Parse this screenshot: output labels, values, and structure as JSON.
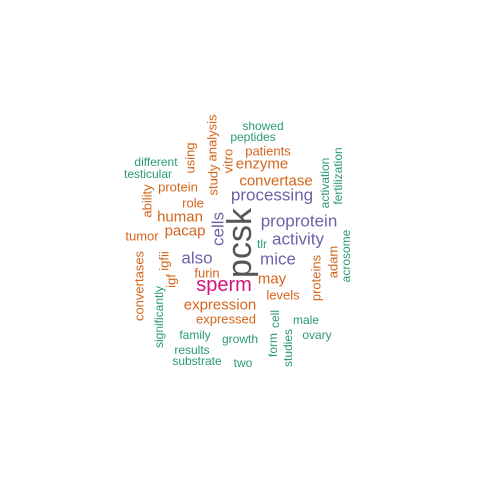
{
  "colors": {
    "dark": "#555555",
    "magenta": "#d4147a",
    "purple": "#6b63a8",
    "orange": "#d4651b",
    "green": "#2a9a72"
  },
  "words": [
    {
      "id": "pcsk",
      "text": "pcsk",
      "weight": 10,
      "color": "dark",
      "vertical": true
    },
    {
      "id": "sperm",
      "text": "sperm",
      "weight": 7,
      "color": "magenta",
      "vertical": false
    },
    {
      "id": "processing",
      "text": "processing",
      "weight": 6,
      "color": "purple",
      "vertical": false
    },
    {
      "id": "proprotein",
      "text": "proprotein",
      "weight": 6,
      "color": "purple",
      "vertical": false
    },
    {
      "id": "activity",
      "text": "activity",
      "weight": 6,
      "color": "purple",
      "vertical": false
    },
    {
      "id": "mice",
      "text": "mice",
      "weight": 6,
      "color": "purple",
      "vertical": false
    },
    {
      "id": "cells",
      "text": "cells",
      "weight": 6,
      "color": "purple",
      "vertical": true
    },
    {
      "id": "also",
      "text": "also",
      "weight": 6,
      "color": "purple",
      "vertical": false
    },
    {
      "id": "convertase",
      "text": "convertase",
      "weight": 5,
      "color": "orange",
      "vertical": false
    },
    {
      "id": "enzyme",
      "text": "enzyme",
      "weight": 5,
      "color": "orange",
      "vertical": false
    },
    {
      "id": "expression",
      "text": "expression",
      "weight": 5,
      "color": "orange",
      "vertical": false
    },
    {
      "id": "human",
      "text": "human",
      "weight": 5,
      "color": "orange",
      "vertical": false
    },
    {
      "id": "pacap",
      "text": "pacap",
      "weight": 5,
      "color": "orange",
      "vertical": false
    },
    {
      "id": "may",
      "text": "may",
      "weight": 5,
      "color": "orange",
      "vertical": false
    },
    {
      "id": "levels",
      "text": "levels",
      "weight": 4,
      "color": "orange",
      "vertical": false
    },
    {
      "id": "furin",
      "text": "furin",
      "weight": 4,
      "color": "orange",
      "vertical": false
    },
    {
      "id": "expressed",
      "text": "expressed",
      "weight": 4,
      "color": "orange",
      "vertical": false
    },
    {
      "id": "protein",
      "text": "protein",
      "weight": 4,
      "color": "orange",
      "vertical": false
    },
    {
      "id": "role",
      "text": "role",
      "weight": 4,
      "color": "orange",
      "vertical": false
    },
    {
      "id": "tumor",
      "text": "tumor",
      "weight": 4,
      "color": "orange",
      "vertical": false
    },
    {
      "id": "patients",
      "text": "patients",
      "weight": 4,
      "color": "orange",
      "vertical": false
    },
    {
      "id": "study",
      "text": "study",
      "weight": 4,
      "color": "orange",
      "vertical": true
    },
    {
      "id": "analysis",
      "text": "analysis",
      "weight": 4,
      "color": "orange",
      "vertical": true
    },
    {
      "id": "vitro",
      "text": "vitro",
      "weight": 4,
      "color": "orange",
      "vertical": true
    },
    {
      "id": "using",
      "text": "using",
      "weight": 4,
      "color": "orange",
      "vertical": true
    },
    {
      "id": "ability",
      "text": "ability",
      "weight": 4,
      "color": "orange",
      "vertical": true
    },
    {
      "id": "convertases",
      "text": "convertases",
      "weight": 4,
      "color": "orange",
      "vertical": true
    },
    {
      "id": "igf",
      "text": "igf",
      "weight": 4,
      "color": "orange",
      "vertical": true
    },
    {
      "id": "igfii",
      "text": "igfii",
      "weight": 4,
      "color": "orange",
      "vertical": true
    },
    {
      "id": "adam",
      "text": "adam",
      "weight": 4,
      "color": "orange",
      "vertical": true
    },
    {
      "id": "proteins",
      "text": "proteins",
      "weight": 4,
      "color": "orange",
      "vertical": true
    },
    {
      "id": "tlr",
      "text": "tlr",
      "weight": 3,
      "color": "green",
      "vertical": false
    },
    {
      "id": "showed",
      "text": "showed",
      "weight": 3,
      "color": "green",
      "vertical": false
    },
    {
      "id": "peptides",
      "text": "peptides",
      "weight": 3,
      "color": "green",
      "vertical": false
    },
    {
      "id": "different",
      "text": "different",
      "weight": 3,
      "color": "green",
      "vertical": false
    },
    {
      "id": "testicular",
      "text": "testicular",
      "weight": 3,
      "color": "green",
      "vertical": false
    },
    {
      "id": "activation",
      "text": "activation",
      "weight": 3,
      "color": "green",
      "vertical": true
    },
    {
      "id": "fertilization",
      "text": "fertilization",
      "weight": 3,
      "color": "green",
      "vertical": true
    },
    {
      "id": "acrosome",
      "text": "acrosome",
      "weight": 3,
      "color": "green",
      "vertical": true
    },
    {
      "id": "significantly",
      "text": "significantly",
      "weight": 3,
      "color": "green",
      "vertical": true
    },
    {
      "id": "family",
      "text": "family",
      "weight": 3,
      "color": "green",
      "vertical": false
    },
    {
      "id": "growth",
      "text": "growth",
      "weight": 3,
      "color": "green",
      "vertical": false
    },
    {
      "id": "results",
      "text": "results",
      "weight": 3,
      "color": "green",
      "vertical": false
    },
    {
      "id": "substrate",
      "text": "substrate",
      "weight": 3,
      "color": "green",
      "vertical": false
    },
    {
      "id": "two",
      "text": "two",
      "weight": 3,
      "color": "green",
      "vertical": false
    },
    {
      "id": "form",
      "text": "form",
      "weight": 3,
      "color": "green",
      "vertical": true
    },
    {
      "id": "cell",
      "text": "cell",
      "weight": 3,
      "color": "green",
      "vertical": true
    },
    {
      "id": "studies",
      "text": "studies",
      "weight": 3,
      "color": "green",
      "vertical": true
    },
    {
      "id": "male",
      "text": "male",
      "weight": 3,
      "color": "green",
      "vertical": false
    },
    {
      "id": "ovary",
      "text": "ovary",
      "weight": 3,
      "color": "green",
      "vertical": false
    }
  ]
}
